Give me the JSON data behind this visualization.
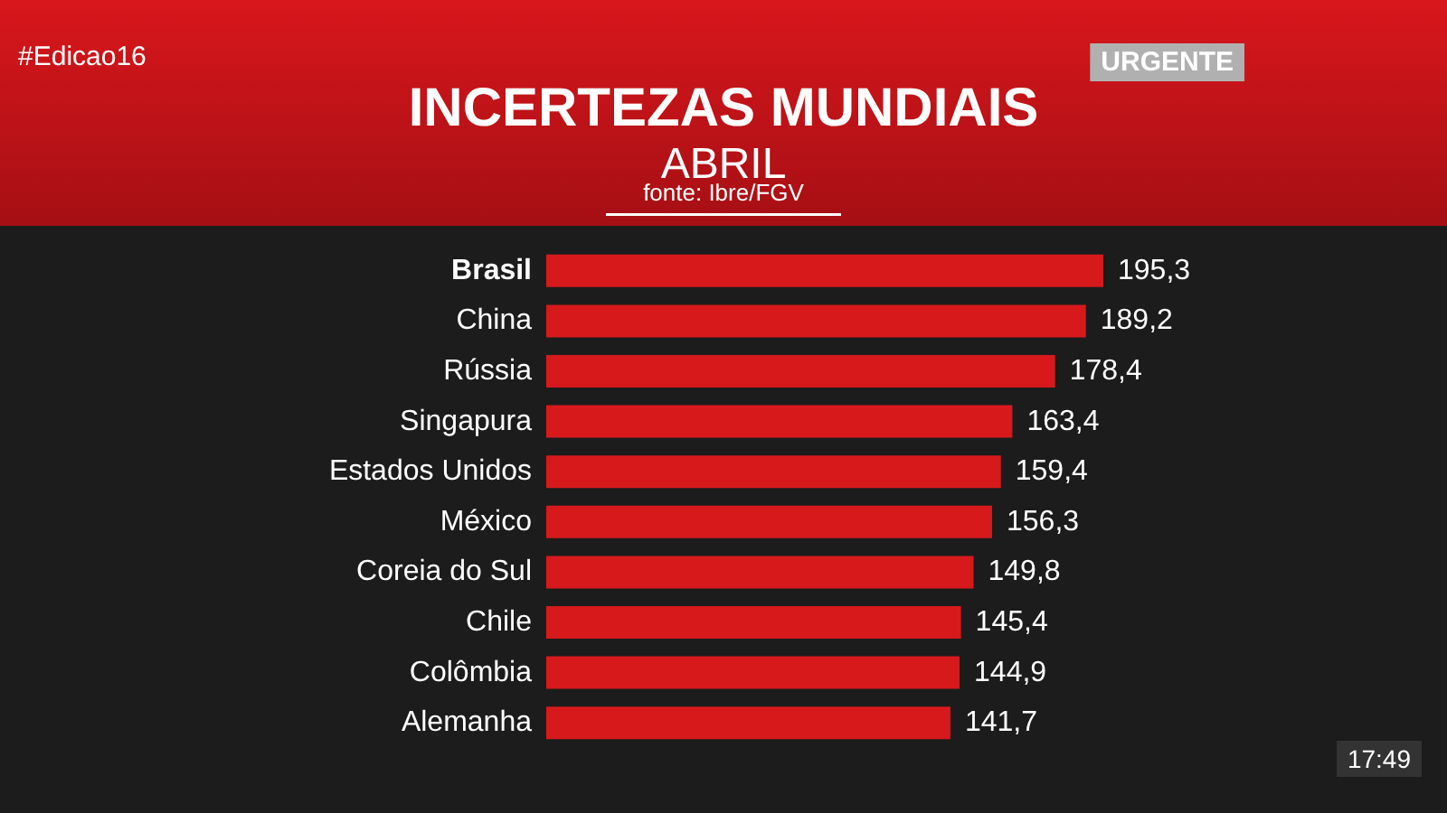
{
  "chart_data": {
    "type": "bar",
    "orientation": "horizontal",
    "title": "INCERTEZAS MUNDIAIS",
    "subtitle": "ABRIL",
    "annotations": [
      "fonte: Ibre/FGV",
      "#Edicao16",
      "URGENTE",
      "17:49"
    ],
    "categories": [
      "Brasil",
      "China",
      "Rússia",
      "Singapura",
      "Estados Unidos",
      "México",
      "Coreia do Sul",
      "Chile",
      "Colômbia",
      "Alemanha"
    ],
    "values": [
      195.3,
      189.2,
      178.4,
      163.4,
      159.4,
      156.3,
      149.8,
      145.4,
      144.9,
      141.7
    ],
    "value_labels": [
      "195,3",
      "189,2",
      "178,4",
      "163,4",
      "159,4",
      "156,3",
      "149,8",
      "145,4",
      "144,9",
      "141,7"
    ],
    "color": "#d7191c",
    "tick_labels": "y"
  }
}
